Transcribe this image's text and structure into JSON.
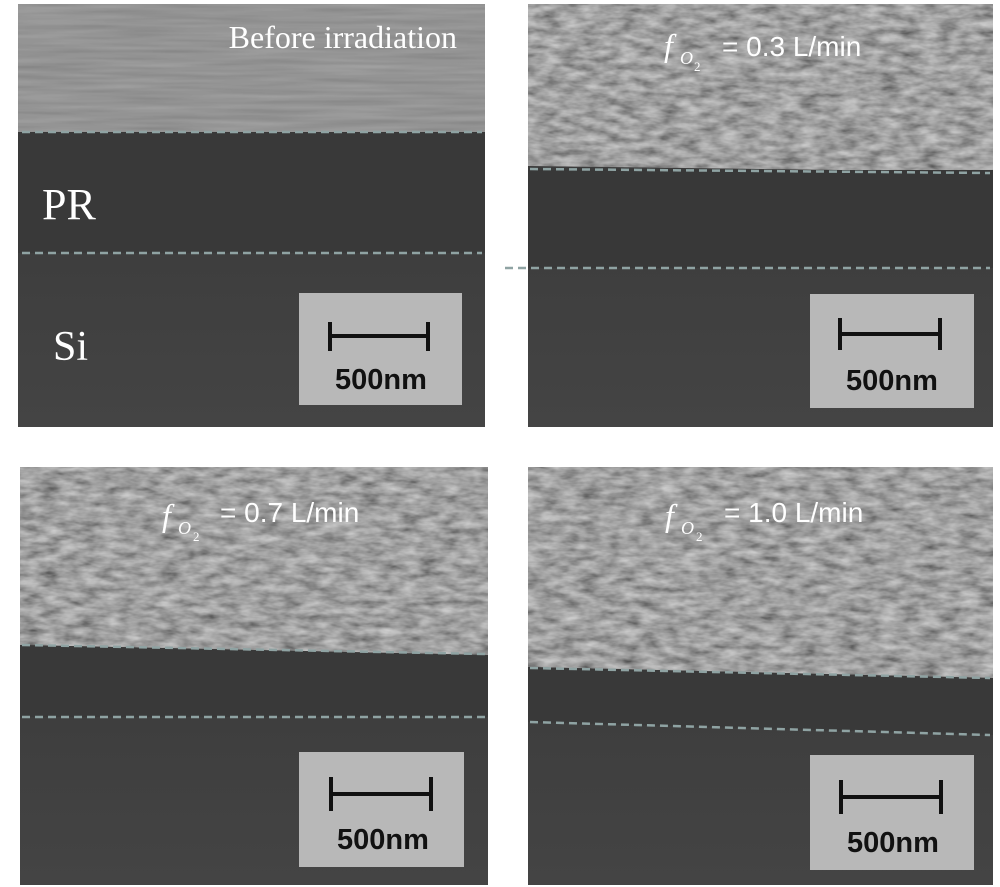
{
  "panels": [
    {
      "title": "Before irradiation",
      "layer_labels": [
        "PR",
        "Si"
      ],
      "scale_bar": "500nm"
    },
    {
      "flow": {
        "symbol": "f",
        "sub": "O",
        "subsub": "2",
        "text": "= 0.3 L/min"
      },
      "scale_bar": "500nm"
    },
    {
      "flow": {
        "symbol": "f",
        "sub": "O",
        "subsub": "2",
        "text": "= 0.7 L/min"
      },
      "scale_bar": "500nm"
    },
    {
      "flow": {
        "symbol": "f",
        "sub": "O",
        "subsub": "2",
        "text": "= 1.0 L/min"
      },
      "scale_bar": "500nm"
    }
  ]
}
